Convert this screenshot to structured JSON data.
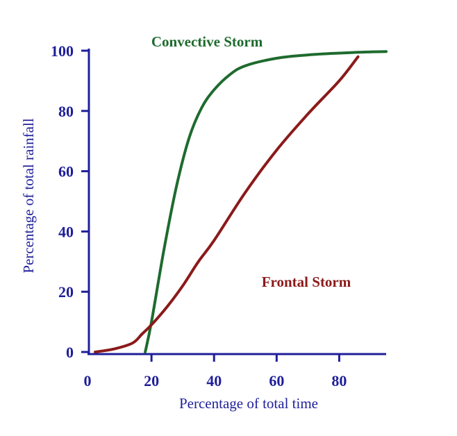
{
  "chart_data": {
    "type": "line",
    "title": "",
    "xlabel": "Percentage of total time",
    "ylabel": "Percentage of total rainfall",
    "xlim": [
      0,
      95
    ],
    "ylim": [
      0,
      100
    ],
    "x_ticks": [
      0,
      20,
      40,
      60,
      80
    ],
    "y_ticks": [
      0,
      20,
      40,
      60,
      80,
      100
    ],
    "grid": false,
    "axis_color": "#1f1f9a",
    "series": [
      {
        "name": "Convective Storm",
        "color": "#1e6b2e",
        "points": [
          [
            18,
            0
          ],
          [
            20,
            10
          ],
          [
            24,
            34
          ],
          [
            28,
            55
          ],
          [
            32,
            71
          ],
          [
            36,
            81
          ],
          [
            40,
            87
          ],
          [
            45,
            92
          ],
          [
            50,
            95
          ],
          [
            60,
            97.5
          ],
          [
            70,
            98.6
          ],
          [
            80,
            99.2
          ],
          [
            90,
            99.6
          ],
          [
            95,
            99.7
          ]
        ]
      },
      {
        "name": "Frontal Storm",
        "color": "#8b1a1a",
        "points": [
          [
            2,
            0
          ],
          [
            8,
            1
          ],
          [
            14,
            3
          ],
          [
            17,
            6
          ],
          [
            20,
            9
          ],
          [
            25,
            15
          ],
          [
            30,
            22
          ],
          [
            35,
            30
          ],
          [
            40,
            37
          ],
          [
            50,
            53
          ],
          [
            60,
            67
          ],
          [
            70,
            79
          ],
          [
            80,
            90
          ],
          [
            86,
            98
          ]
        ]
      }
    ]
  }
}
